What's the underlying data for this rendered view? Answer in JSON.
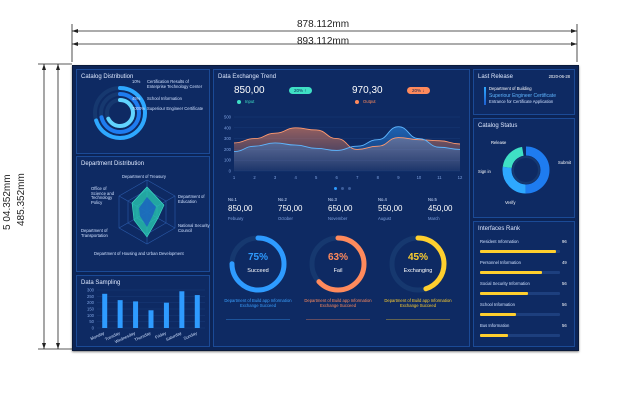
{
  "dimensions": {
    "top_outer": "893.112mm",
    "top_inner": "878.112mm",
    "left_outer": "5 04.352mm",
    "left_inner": "485.352mm"
  },
  "catalog_distribution": {
    "title": "Catalog Distribution",
    "items": [
      {
        "pct": "10%",
        "label": "Certification Results of Enterprise Technology Center"
      },
      {
        "pct": "45%",
        "label": "School Information"
      },
      {
        "pct": "7000%",
        "label": "Superiour Engineer Certificate"
      }
    ]
  },
  "department_distribution": {
    "title": "Department Distribution",
    "labels": [
      "Department of Treasury",
      "Department of Education",
      "National Security Council",
      "Department of Housing and Urban Development",
      "Department of Transportation",
      "Office of Science and Technology Policy"
    ]
  },
  "data_sampling": {
    "title": "Data Sampling",
    "y_ticks": [
      "300",
      "250",
      "200",
      "150",
      "100",
      "50",
      "0"
    ],
    "categories": [
      "Monday",
      "Tuesday",
      "Wednesday",
      "Thursday",
      "Friday",
      "Saturday",
      "Sunday"
    ],
    "values": [
      270,
      220,
      210,
      140,
      200,
      290,
      260
    ]
  },
  "data_exchange": {
    "title": "Data Exchange Trend",
    "input_value": "850,00",
    "input_badge": "20% ↑",
    "input_label": "Input",
    "output_value": "970,30",
    "output_badge": "20% ↓",
    "output_label": "Output",
    "y_ticks": [
      "500",
      "400",
      "300",
      "200",
      "100",
      "0"
    ],
    "x_ticks": [
      "1",
      "2",
      "3",
      "4",
      "5",
      "6",
      "7",
      "8",
      "9",
      "10",
      "11",
      "12"
    ]
  },
  "stats": [
    {
      "no": "No.1",
      "value": "850,00",
      "month": "Febuary"
    },
    {
      "no": "No.2",
      "value": "750,00",
      "month": "October"
    },
    {
      "no": "No.3",
      "value": "650,00",
      "month": "November"
    },
    {
      "no": "No.4",
      "value": "550,00",
      "month": "August"
    },
    {
      "no": "No.5",
      "value": "450,00",
      "month": "March"
    }
  ],
  "gauges": [
    {
      "pct": "75%",
      "label": "Succeed",
      "fraction": 0.75,
      "color": "#2e9bff",
      "caption": "Department of Build app Information Exchange Succeed",
      "caption_color": "#3aa0ff"
    },
    {
      "pct": "63%",
      "label": "Fail",
      "fraction": 0.63,
      "color": "#ff8a5c",
      "caption": "Department of Build app Information Exchange Succeed",
      "caption_color": "#ff8a5c"
    },
    {
      "pct": "45%",
      "label": "Exchanging",
      "fraction": 0.45,
      "color": "#ffcf2e",
      "caption": "Department of Build app Information Exchange Succeed",
      "caption_color": "#ffcf2e"
    }
  ],
  "last_release": {
    "title": "Last Release",
    "date": "2020-06-28",
    "dept": "Department of Building",
    "cert": "Superiour Engineer Certificate",
    "desc": "Entrance for Certificate Application"
  },
  "catalog_status": {
    "title": "Catalog Status",
    "labels": [
      "Release",
      "Submit",
      "Sign in",
      "Verify"
    ]
  },
  "interfaces_rank": {
    "title": "Interfaces Rank",
    "items": [
      {
        "label": "Resident Information",
        "value": "96",
        "fraction": 0.95
      },
      {
        "label": "Personnel Information",
        "value": "49",
        "fraction": 0.78
      },
      {
        "label": "Social Security Information",
        "value": "56",
        "fraction": 0.6
      },
      {
        "label": "School Information",
        "value": "56",
        "fraction": 0.45
      },
      {
        "label": "Bus Information",
        "value": "56",
        "fraction": 0.35
      }
    ]
  },
  "colors": {
    "accent": "#2e9bff",
    "input": "#3fe0c5",
    "output": "#ff8a5c",
    "panel": "#0e2a63",
    "border": "#1b4a96"
  }
}
